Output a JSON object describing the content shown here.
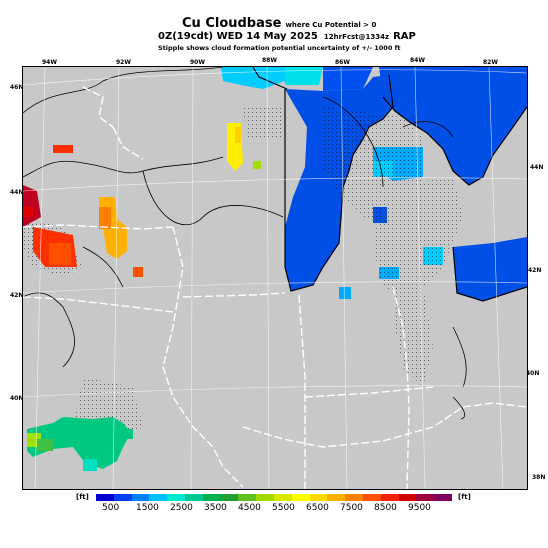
{
  "header": {
    "title": "Cu Cloudbase",
    "title_sub": "where Cu Potential > 0",
    "valid_time": "0Z(19cdt) WED 14 May 2025",
    "init": "12hrFcst@1334z",
    "model": "RAP",
    "stipple_note": "Stipple shows cloud formation potential uncertainty of +/- 1000 ft"
  },
  "map": {
    "lon_labels": [
      "94W",
      "92W",
      "90W",
      "88W",
      "86W",
      "84W",
      "82W"
    ],
    "lat_labels_left": [
      "46N",
      "44N",
      "42N",
      "40N"
    ],
    "lat_labels_right": [
      "44N",
      "42N",
      "40N",
      "38N"
    ]
  },
  "legend": {
    "unit_left": "[ft]",
    "unit_right": "[ft]",
    "ticks": [
      "500",
      "1500",
      "2500",
      "3500",
      "4500",
      "5500",
      "6500",
      "7500",
      "8500",
      "9500"
    ],
    "colors": [
      "#0000d0",
      "#0040f0",
      "#0080ff",
      "#00c0ff",
      "#00e8d0",
      "#00c890",
      "#00b050",
      "#20a030",
      "#60c020",
      "#a0d800",
      "#d8e800",
      "#ffff00",
      "#ffd800",
      "#ffb000",
      "#ff8000",
      "#ff5000",
      "#f02000",
      "#d00000",
      "#a00040",
      "#800060"
    ]
  }
}
